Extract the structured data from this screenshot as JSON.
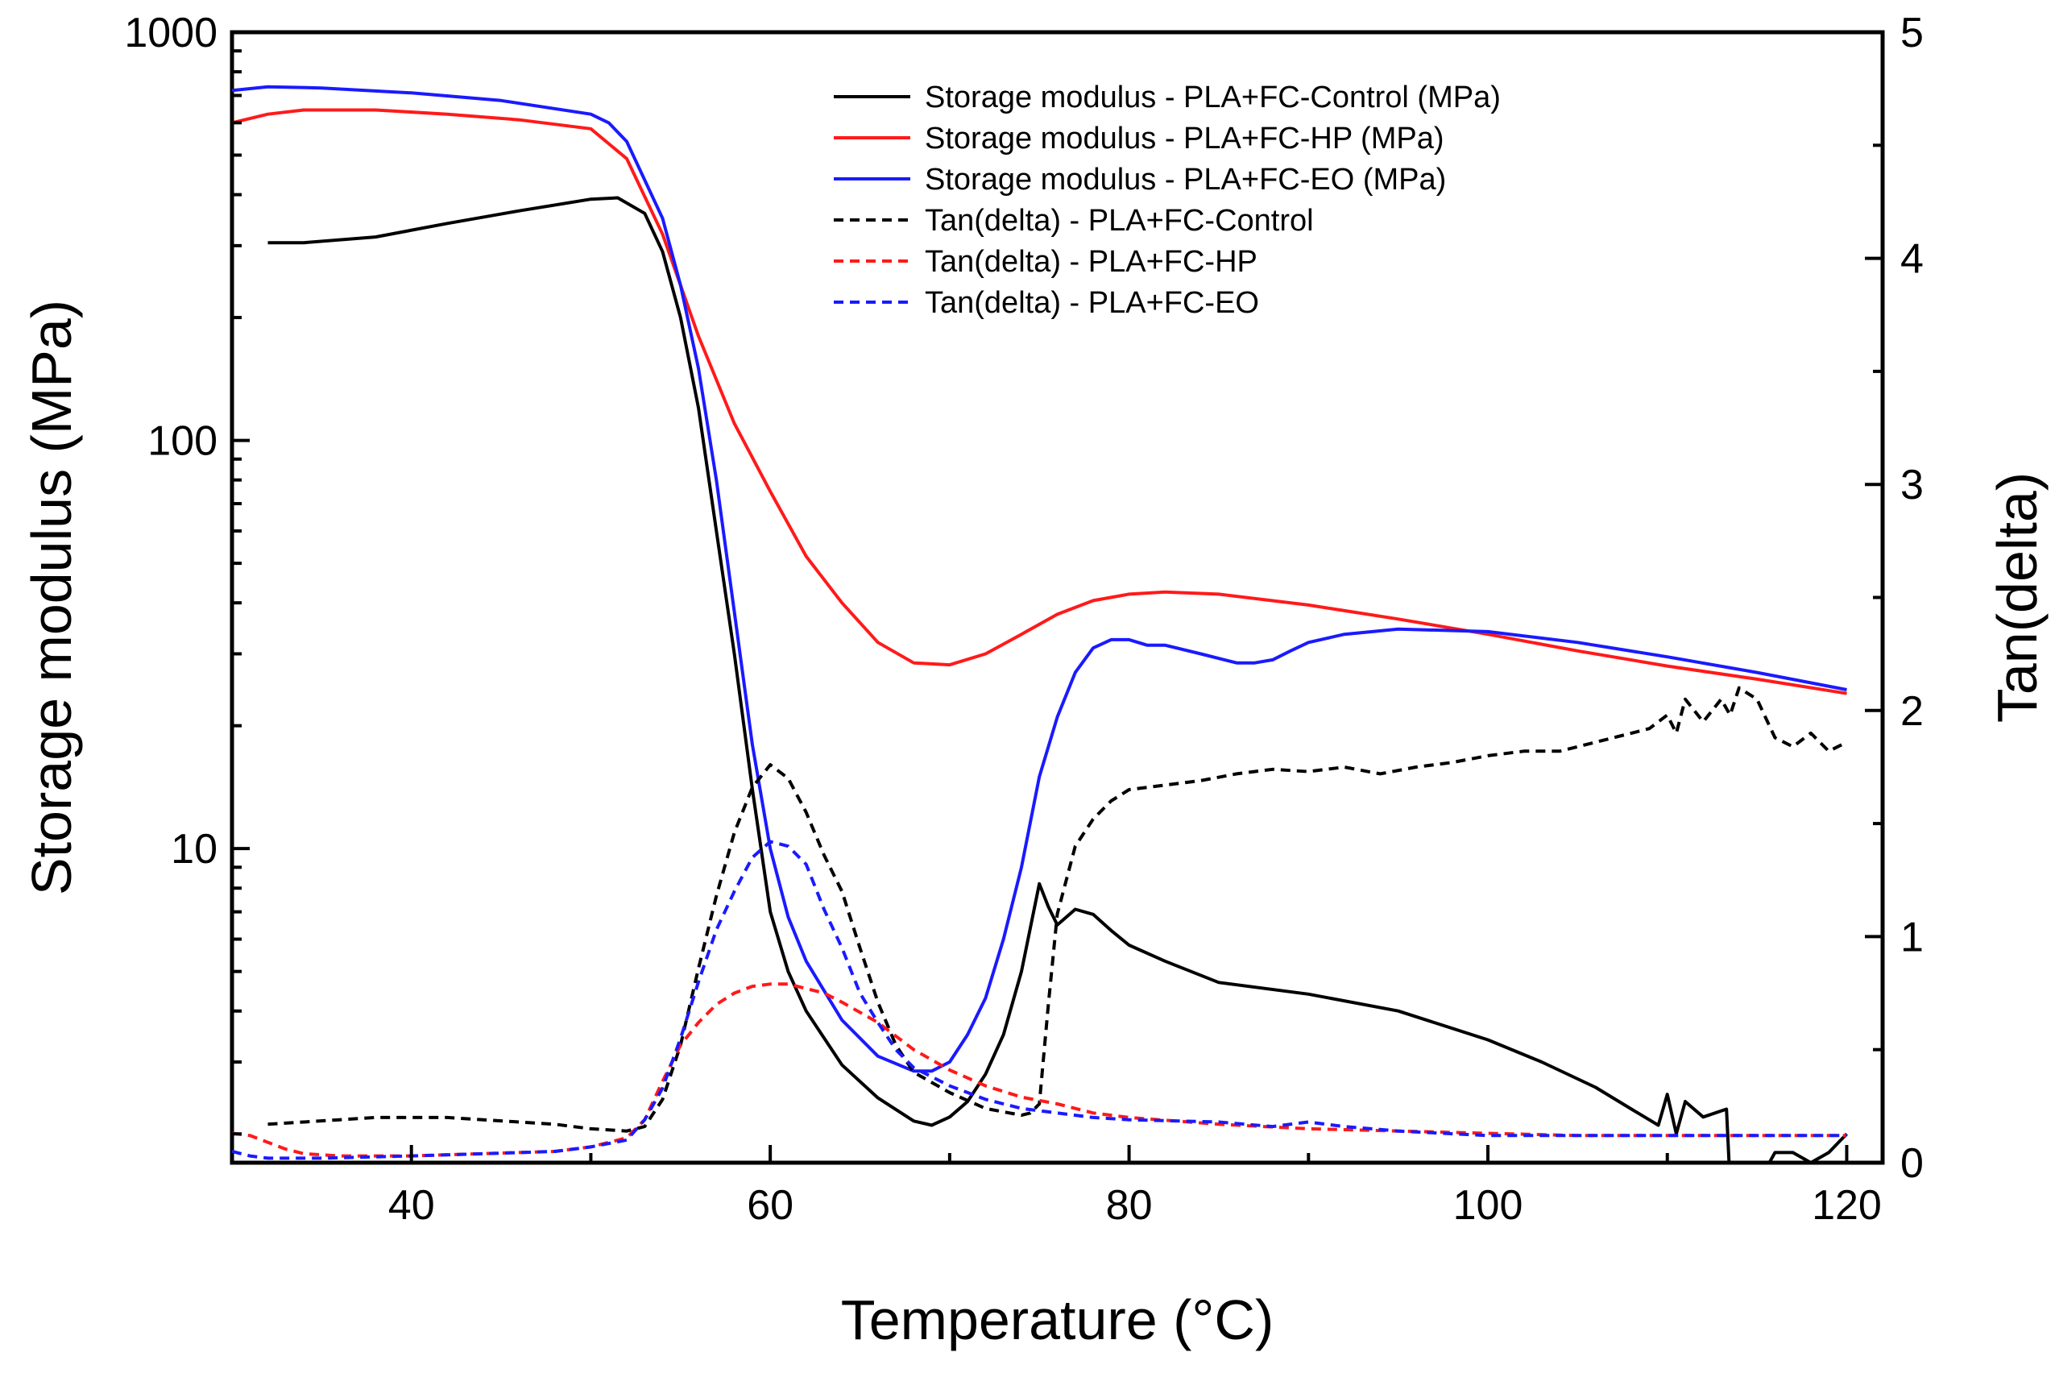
{
  "chart_data": {
    "type": "line",
    "xlabel": "Temperature (°C)",
    "ylabel": "Storage modulus (MPa)",
    "y2label": "Tan(delta)",
    "xlim": [
      30,
      122
    ],
    "ylim": [
      1.7,
      1000
    ],
    "y2lim": [
      0,
      5
    ],
    "yscale": "log",
    "x_ticks": [
      {
        "value": 40,
        "label": "40"
      },
      {
        "value": 60,
        "label": "60"
      },
      {
        "value": 80,
        "label": "80"
      },
      {
        "value": 100,
        "label": "100"
      },
      {
        "value": 120,
        "label": "120"
      }
    ],
    "y_ticks": [
      {
        "value": 10,
        "label": "10"
      },
      {
        "value": 100,
        "label": "100"
      },
      {
        "value": 1000,
        "label": "1000"
      }
    ],
    "y2_ticks": [
      {
        "value": 0,
        "label": "0"
      },
      {
        "value": 1,
        "label": "1"
      },
      {
        "value": 2,
        "label": "2"
      },
      {
        "value": 3,
        "label": "3"
      },
      {
        "value": 4,
        "label": "4"
      },
      {
        "value": 5,
        "label": "5"
      }
    ],
    "legend_position": "top-right",
    "colors": {
      "control": "#000000",
      "hp": "#ff1a1a",
      "eo": "#1a1aff"
    },
    "series": [
      {
        "name": "Storage modulus - PLA+FC-Control (MPa)",
        "axis": "left",
        "style": "solid",
        "color": "#000000",
        "x": [
          32,
          34,
          38,
          42,
          46,
          50,
          51.5,
          53,
          54,
          55,
          56,
          57,
          58,
          59,
          60,
          61,
          62,
          64,
          66,
          68,
          69,
          70,
          71,
          72,
          73,
          74,
          75,
          75.5,
          76,
          77,
          78,
          79,
          80,
          82,
          85,
          90,
          95,
          100,
          103,
          106,
          108,
          109.5,
          110,
          110.5,
          111,
          112,
          113.3,
          113.5,
          115,
          116,
          117,
          118,
          119,
          120
        ],
        "y": [
          305,
          305,
          315,
          340,
          365,
          390,
          393,
          360,
          290,
          200,
          120,
          60,
          30,
          14,
          7,
          5,
          4,
          2.95,
          2.45,
          2.15,
          2.1,
          2.2,
          2.4,
          2.8,
          3.5,
          5,
          8.2,
          7.2,
          6.5,
          7.1,
          6.9,
          6.3,
          5.8,
          5.3,
          4.7,
          4.4,
          4.0,
          3.4,
          3.0,
          2.6,
          2.3,
          2.1,
          2.5,
          2.0,
          2.4,
          2.2,
          2.3,
          1.5,
          1.5,
          1.8,
          1.8,
          1.7,
          1.8,
          2.0
        ]
      },
      {
        "name": "Storage modulus - PLA+FC-HP (MPa)",
        "axis": "left",
        "style": "solid",
        "color": "#ff1a1a",
        "x": [
          30,
          32,
          34,
          38,
          42,
          46,
          50,
          52,
          54,
          56,
          58,
          60,
          62,
          64,
          66,
          68,
          70,
          72,
          74,
          76,
          78,
          80,
          82,
          85,
          90,
          95,
          100,
          105,
          110,
          115,
          120
        ],
        "y": [
          600,
          630,
          645,
          645,
          630,
          610,
          580,
          490,
          320,
          180,
          110,
          75,
          52,
          40,
          32,
          28.5,
          28.2,
          30,
          33.5,
          37.5,
          40.5,
          42,
          42.5,
          42,
          39.5,
          36.5,
          33.5,
          30.5,
          28,
          26,
          24
        ]
      },
      {
        "name": "Storage modulus - PLA+FC-EO (MPa)",
        "axis": "left",
        "style": "solid",
        "color": "#1a1aff",
        "x": [
          30,
          32,
          35,
          40,
          45,
          50,
          51,
          52,
          54,
          55,
          56,
          57,
          58,
          59,
          60,
          61,
          62,
          64,
          66,
          68,
          69,
          70,
          71,
          72,
          73,
          74,
          75,
          76,
          77,
          78,
          79,
          80,
          81,
          82,
          84,
          86,
          87,
          88,
          89,
          90,
          92,
          95,
          100,
          105,
          110,
          115,
          120
        ],
        "y": [
          720,
          735,
          730,
          710,
          680,
          630,
          600,
          540,
          350,
          240,
          150,
          80,
          38,
          18,
          10,
          6.8,
          5.3,
          3.8,
          3.1,
          2.85,
          2.85,
          3.0,
          3.5,
          4.3,
          6,
          9,
          15,
          21,
          27,
          31,
          32.5,
          32.5,
          31.5,
          31.5,
          30,
          28.5,
          28.5,
          29,
          30.5,
          32,
          33.5,
          34.5,
          34,
          32,
          29.5,
          27,
          24.5
        ]
      },
      {
        "name": "Tan(delta) - PLA+FC-Control",
        "axis": "right",
        "style": "dashed",
        "color": "#000000",
        "x": [
          32,
          34,
          36,
          38,
          40,
          42,
          44,
          46,
          48,
          50,
          52,
          53,
          54,
          55,
          56,
          57,
          58,
          59,
          60,
          61,
          62,
          63,
          64,
          65,
          66,
          67,
          68,
          70,
          72,
          74,
          74.5,
          75,
          75.5,
          76,
          77,
          78,
          79,
          80,
          82,
          84,
          86,
          88,
          90,
          92,
          94,
          96,
          98,
          100,
          102,
          104,
          106,
          108,
          109,
          110,
          110.5,
          111,
          112,
          113,
          113.5,
          114,
          115,
          116,
          117,
          118,
          119,
          120
        ],
        "y": [
          0.17,
          0.18,
          0.19,
          0.2,
          0.2,
          0.2,
          0.19,
          0.18,
          0.17,
          0.15,
          0.14,
          0.16,
          0.28,
          0.52,
          0.86,
          1.18,
          1.46,
          1.66,
          1.76,
          1.7,
          1.55,
          1.36,
          1.2,
          0.95,
          0.71,
          0.52,
          0.4,
          0.31,
          0.24,
          0.21,
          0.22,
          0.26,
          0.7,
          1.1,
          1.4,
          1.52,
          1.6,
          1.65,
          1.67,
          1.69,
          1.72,
          1.74,
          1.73,
          1.75,
          1.72,
          1.75,
          1.77,
          1.8,
          1.82,
          1.82,
          1.86,
          1.9,
          1.92,
          1.98,
          1.9,
          2.05,
          1.95,
          2.05,
          1.98,
          2.1,
          2.05,
          1.88,
          1.84,
          1.9,
          1.82,
          1.86
        ]
      },
      {
        "name": "Tan(delta) - PLA+FC-HP",
        "axis": "right",
        "style": "dashed",
        "color": "#ff1a1a",
        "x": [
          30,
          31,
          32,
          33,
          34,
          36,
          40,
          44,
          48,
          50,
          52,
          53,
          54,
          55,
          56,
          57,
          58,
          59,
          60,
          61,
          62,
          63,
          64,
          66,
          68,
          70,
          72,
          74,
          76,
          78,
          80,
          85,
          90,
          95,
          100,
          105,
          110,
          115,
          120
        ],
        "y": [
          0.13,
          0.12,
          0.09,
          0.06,
          0.04,
          0.03,
          0.03,
          0.04,
          0.05,
          0.07,
          0.11,
          0.19,
          0.36,
          0.52,
          0.62,
          0.7,
          0.75,
          0.78,
          0.79,
          0.79,
          0.77,
          0.75,
          0.71,
          0.62,
          0.5,
          0.41,
          0.34,
          0.29,
          0.26,
          0.22,
          0.2,
          0.17,
          0.15,
          0.14,
          0.13,
          0.12,
          0.12,
          0.12,
          0.12
        ]
      },
      {
        "name": "Tan(delta) - PLA+FC-EO",
        "axis": "right",
        "style": "dashed",
        "color": "#1a1aff",
        "x": [
          30,
          31,
          32,
          35,
          40,
          44,
          48,
          50,
          52,
          53,
          54,
          55,
          56,
          57,
          58,
          59,
          60,
          61,
          62,
          63,
          64,
          65,
          66,
          67,
          68,
          70,
          72,
          74,
          76,
          78,
          80,
          85,
          88,
          90,
          92,
          95,
          100,
          105,
          110,
          115,
          120
        ],
        "y": [
          0.05,
          0.03,
          0.02,
          0.02,
          0.03,
          0.04,
          0.05,
          0.07,
          0.1,
          0.19,
          0.33,
          0.55,
          0.8,
          1.03,
          1.2,
          1.35,
          1.42,
          1.4,
          1.32,
          1.12,
          0.95,
          0.75,
          0.62,
          0.5,
          0.42,
          0.34,
          0.28,
          0.24,
          0.22,
          0.2,
          0.19,
          0.18,
          0.16,
          0.18,
          0.16,
          0.14,
          0.12,
          0.12,
          0.12,
          0.12,
          0.12
        ]
      }
    ]
  }
}
